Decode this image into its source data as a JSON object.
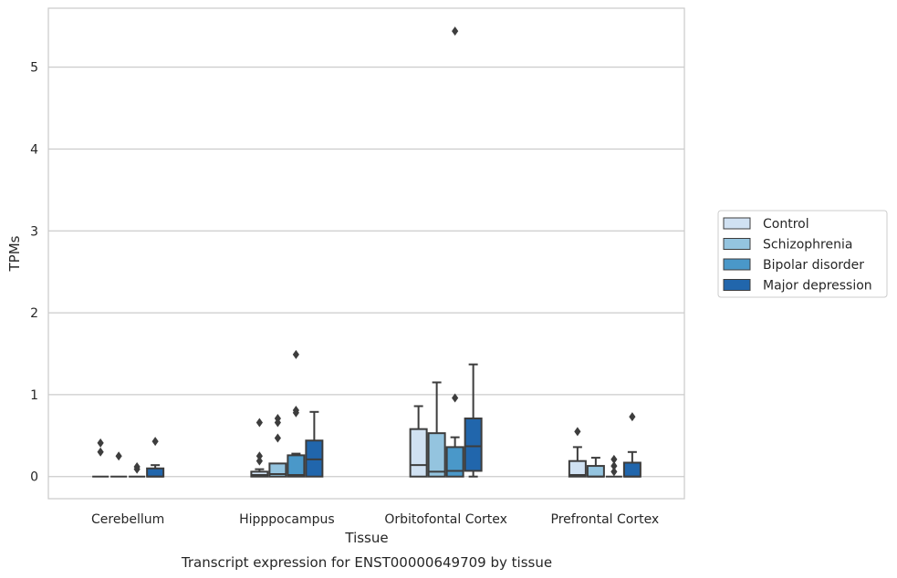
{
  "caption": "Transcript expression for ENST00000649709 by tissue",
  "chart_data": {
    "type": "box",
    "xlabel": "Tissue",
    "ylabel": "TPMs",
    "ylim": [
      -0.27,
      5.72
    ],
    "yticks": [
      0,
      1,
      2,
      3,
      4,
      5
    ],
    "grid": "horizontal",
    "legend_position": "right",
    "categories": [
      "Cerebellum",
      "Hipppocampus",
      "Orbitofontal Cortex",
      "Prefrontal Cortex"
    ],
    "series": [
      {
        "name": "Control",
        "color": "#d0e1f2",
        "boxes": [
          {
            "whislo": 0,
            "q1": 0,
            "med": 0,
            "q3": 0,
            "whishi": 0,
            "fliers": [
              0.41,
              0.3
            ]
          },
          {
            "whislo": 0,
            "q1": 0,
            "med": 0.02,
            "q3": 0.06,
            "whishi": 0.09,
            "fliers": [
              0.66,
              0.25,
              0.19
            ]
          },
          {
            "whislo": 0,
            "q1": 0,
            "med": 0.14,
            "q3": 0.58,
            "whishi": 0.86,
            "fliers": []
          },
          {
            "whislo": 0,
            "q1": 0,
            "med": 0.02,
            "q3": 0.19,
            "whishi": 0.36,
            "fliers": [
              0.55
            ]
          }
        ]
      },
      {
        "name": "Schizophrenia",
        "color": "#94c4df",
        "boxes": [
          {
            "whislo": 0,
            "q1": 0,
            "med": 0,
            "q3": 0,
            "whishi": 0,
            "fliers": [
              0.25
            ]
          },
          {
            "whislo": 0,
            "q1": 0,
            "med": 0.03,
            "q3": 0.16,
            "whishi": 0.16,
            "fliers": [
              0.71,
              0.66,
              0.47
            ]
          },
          {
            "whislo": 0,
            "q1": 0,
            "med": 0.06,
            "q3": 0.53,
            "whishi": 1.15,
            "fliers": []
          },
          {
            "whislo": 0,
            "q1": 0,
            "med": 0,
            "q3": 0.13,
            "whishi": 0.23,
            "fliers": []
          }
        ]
      },
      {
        "name": "Bipolar disorder",
        "color": "#4a98c9",
        "boxes": [
          {
            "whislo": 0,
            "q1": 0,
            "med": 0,
            "q3": 0,
            "whishi": 0,
            "fliers": [
              0.12,
              0.09
            ]
          },
          {
            "whislo": 0,
            "q1": 0,
            "med": 0.02,
            "q3": 0.26,
            "whishi": 0.28,
            "fliers": [
              1.49,
              0.81,
              0.78
            ]
          },
          {
            "whislo": 0,
            "q1": 0,
            "med": 0.07,
            "q3": 0.36,
            "whishi": 0.48,
            "fliers": [
              5.44,
              0.96
            ]
          },
          {
            "whislo": 0,
            "q1": 0,
            "med": 0,
            "q3": 0,
            "whishi": 0,
            "fliers": [
              0.21,
              0.13,
              0.06
            ]
          }
        ]
      },
      {
        "name": "Major depression",
        "color": "#2166ac",
        "boxes": [
          {
            "whislo": 0,
            "q1": 0,
            "med": 0,
            "q3": 0.1,
            "whishi": 0.14,
            "fliers": [
              0.43
            ]
          },
          {
            "whislo": 0,
            "q1": 0,
            "med": 0.21,
            "q3": 0.44,
            "whishi": 0.79,
            "fliers": []
          },
          {
            "whislo": 0,
            "q1": 0.07,
            "med": 0.37,
            "q3": 0.71,
            "whishi": 1.37,
            "fliers": []
          },
          {
            "whislo": 0,
            "q1": 0,
            "med": 0,
            "q3": 0.17,
            "whishi": 0.3,
            "fliers": [
              0.73
            ]
          }
        ]
      }
    ]
  }
}
